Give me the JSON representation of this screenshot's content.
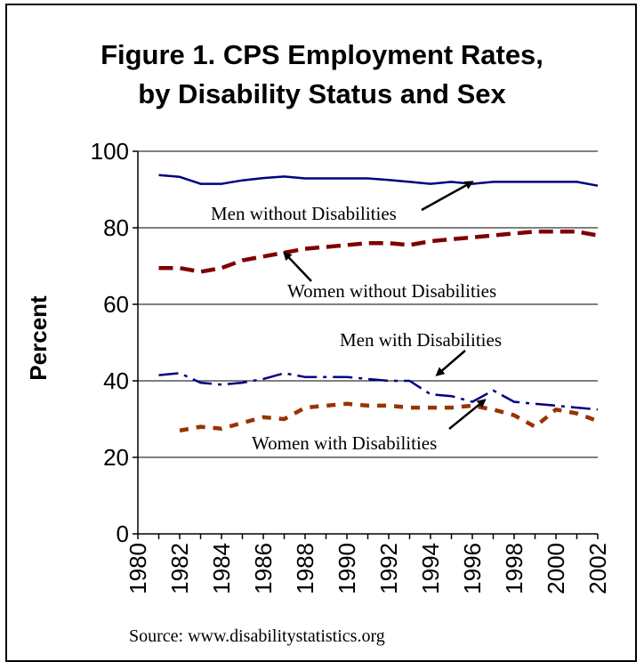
{
  "chart_data": {
    "type": "line",
    "title_line1": "Figure 1. CPS Employment Rates,",
    "title_line2": "by Disability Status and Sex",
    "ylabel": "Percent",
    "xlabel": "",
    "ylim": [
      0,
      100
    ],
    "xlim": [
      1980,
      2002
    ],
    "y_ticks": [
      "0",
      "20",
      "40",
      "60",
      "80",
      "100"
    ],
    "x_ticks": [
      "1980",
      "1982",
      "1984",
      "1986",
      "1988",
      "1990",
      "1992",
      "1994",
      "1996",
      "1998",
      "2000",
      "2002"
    ],
    "grid": "horizontal",
    "source": "Source: www.disabilitystatistics.org",
    "series": [
      {
        "name": "Men without Disabilities",
        "color": "#000080",
        "style": "solid",
        "x": [
          1981,
          1982,
          1983,
          1984,
          1985,
          1986,
          1987,
          1988,
          1989,
          1990,
          1991,
          1992,
          1993,
          1994,
          1995,
          1996,
          1997,
          1998,
          1999,
          2000,
          2001,
          2002
        ],
        "values": [
          93.8,
          93.3,
          91.5,
          91.5,
          92.4,
          93.0,
          93.4,
          92.9,
          92.9,
          92.9,
          92.9,
          92.5,
          92.0,
          91.5,
          92.0,
          91.5,
          92.0,
          92.0,
          92.0,
          92.0,
          92.0,
          91.0
        ]
      },
      {
        "name": "Women without Disabilities",
        "color": "#800000",
        "style": "dashed",
        "x": [
          1981,
          1982,
          1983,
          1984,
          1985,
          1986,
          1987,
          1988,
          1989,
          1990,
          1991,
          1992,
          1993,
          1994,
          1995,
          1996,
          1997,
          1998,
          1999,
          2000,
          2001,
          2002
        ],
        "values": [
          69.5,
          69.5,
          68.5,
          69.5,
          71.5,
          72.5,
          73.5,
          74.5,
          75.0,
          75.5,
          76.0,
          76.0,
          75.5,
          76.5,
          77.0,
          77.5,
          78.0,
          78.5,
          79.0,
          79.0,
          79.0,
          78.0
        ]
      },
      {
        "name": "Men with Disabilities",
        "color": "#000080",
        "style": "dashdot",
        "x": [
          1981,
          1982,
          1983,
          1984,
          1985,
          1986,
          1987,
          1988,
          1989,
          1990,
          1991,
          1992,
          1993,
          1994,
          1995,
          1996,
          1997,
          1998,
          1999,
          2000,
          2001,
          2002
        ],
        "values": [
          41.5,
          42.0,
          39.5,
          39.0,
          39.5,
          40.5,
          42.0,
          41.0,
          41.0,
          41.0,
          40.5,
          40.0,
          40.0,
          36.5,
          36.0,
          34.5,
          37.5,
          34.5,
          34.0,
          33.5,
          33.0,
          32.5
        ]
      },
      {
        "name": "Women with Disabilities",
        "color": "#993300",
        "style": "dotted",
        "x": [
          1982,
          1983,
          1984,
          1985,
          1986,
          1987,
          1988,
          1989,
          1990,
          1991,
          1992,
          1993,
          1994,
          1995,
          1996,
          1997,
          1998,
          1999,
          2000,
          2001,
          2002
        ],
        "values": [
          27.0,
          28.0,
          27.5,
          29.0,
          30.5,
          30.0,
          33.0,
          33.5,
          34.0,
          33.5,
          33.5,
          33.0,
          33.0,
          33.0,
          33.5,
          32.5,
          31.0,
          28.0,
          32.5,
          31.5,
          29.5
        ]
      }
    ],
    "annotations": [
      {
        "text": "Men without Disabilities",
        "series": 0
      },
      {
        "text": "Women without Disabilities",
        "series": 1
      },
      {
        "text": "Men with Disabilities",
        "series": 2
      },
      {
        "text": "Women with Disabilities",
        "series": 3
      }
    ]
  }
}
